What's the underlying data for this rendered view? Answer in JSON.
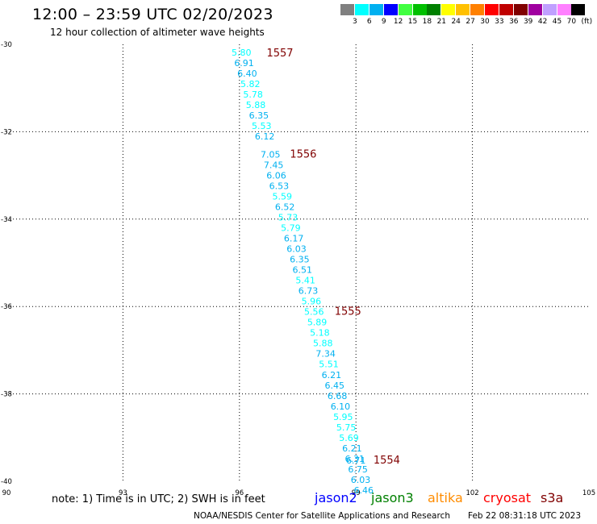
{
  "title": "12:00 – 23:59 UTC 02/20/2023",
  "subtitle": "12 hour collection of altimeter wave heights",
  "legend": {
    "colors": [
      "#808080",
      "#00ffff",
      "#00b0f0",
      "#0000ff",
      "#40ff40",
      "#00c000",
      "#008000",
      "#ffff00",
      "#ffc000",
      "#ff8000",
      "#ff0000",
      "#c00000",
      "#800000",
      "#a000a0",
      "#c0a0ff",
      "#ff80ff",
      "#000000"
    ],
    "labels": [
      "3",
      "6",
      "9",
      "12",
      "15",
      "18",
      "21",
      "24",
      "27",
      "30",
      "33",
      "36",
      "39",
      "42",
      "45",
      "70"
    ],
    "unit": "(ft)"
  },
  "chart_data": {
    "type": "scatter",
    "title": "12:00 – 23:59 UTC 02/20/2023",
    "subtitle": "12 hour collection of altimeter wave heights",
    "xlim": [
      90,
      105
    ],
    "ylim": [
      -40,
      -30
    ],
    "x_ticks": [
      "90",
      "93",
      "96",
      "99",
      "102",
      "105"
    ],
    "y_ticks": [
      "-30",
      "-32",
      "-34",
      "-36",
      "-38",
      "-40"
    ],
    "grid": true,
    "points": [
      {
        "x": 96.05,
        "y": -30.18,
        "v": "5.80",
        "c": "#00ffff"
      },
      {
        "x": 96.12,
        "y": -30.42,
        "v": "6.91",
        "c": "#00b0f0"
      },
      {
        "x": 96.2,
        "y": -30.66,
        "v": "6.40",
        "c": "#00b0f0"
      },
      {
        "x": 96.28,
        "y": -30.9,
        "v": "5.82",
        "c": "#00ffff"
      },
      {
        "x": 96.35,
        "y": -31.14,
        "v": "5.78",
        "c": "#00ffff"
      },
      {
        "x": 96.42,
        "y": -31.38,
        "v": "5.88",
        "c": "#00ffff"
      },
      {
        "x": 96.5,
        "y": -31.62,
        "v": "6.35",
        "c": "#00b0f0"
      },
      {
        "x": 96.57,
        "y": -31.86,
        "v": "5.53",
        "c": "#00ffff"
      },
      {
        "x": 96.65,
        "y": -32.1,
        "v": "6.12",
        "c": "#00b0f0"
      },
      {
        "x": 96.8,
        "y": -32.52,
        "v": "7.05",
        "c": "#00b0f0"
      },
      {
        "x": 96.88,
        "y": -32.76,
        "v": "7.45",
        "c": "#00b0f0"
      },
      {
        "x": 96.95,
        "y": -33.0,
        "v": "6.06",
        "c": "#00b0f0"
      },
      {
        "x": 97.02,
        "y": -33.24,
        "v": "6.53",
        "c": "#00b0f0"
      },
      {
        "x": 97.1,
        "y": -33.48,
        "v": "5.59",
        "c": "#00ffff"
      },
      {
        "x": 97.17,
        "y": -33.72,
        "v": "6.52",
        "c": "#00b0f0"
      },
      {
        "x": 97.25,
        "y": -33.96,
        "v": "5.73",
        "c": "#00ffff"
      },
      {
        "x": 97.32,
        "y": -34.2,
        "v": "5.79",
        "c": "#00ffff"
      },
      {
        "x": 97.4,
        "y": -34.44,
        "v": "6.17",
        "c": "#00b0f0"
      },
      {
        "x": 97.47,
        "y": -34.68,
        "v": "6.03",
        "c": "#00b0f0"
      },
      {
        "x": 97.55,
        "y": -34.92,
        "v": "6.35",
        "c": "#00b0f0"
      },
      {
        "x": 97.62,
        "y": -35.16,
        "v": "6.51",
        "c": "#00b0f0"
      },
      {
        "x": 97.7,
        "y": -35.4,
        "v": "5.41",
        "c": "#00ffff"
      },
      {
        "x": 97.77,
        "y": -35.64,
        "v": "6.73",
        "c": "#00b0f0"
      },
      {
        "x": 97.85,
        "y": -35.88,
        "v": "5.96",
        "c": "#00ffff"
      },
      {
        "x": 97.92,
        "y": -36.12,
        "v": "5.56",
        "c": "#00ffff"
      },
      {
        "x": 98.0,
        "y": -36.36,
        "v": "5.89",
        "c": "#00ffff"
      },
      {
        "x": 98.07,
        "y": -36.6,
        "v": "5.18",
        "c": "#00ffff"
      },
      {
        "x": 98.15,
        "y": -36.84,
        "v": "5.88",
        "c": "#00ffff"
      },
      {
        "x": 98.22,
        "y": -37.08,
        "v": "7.34",
        "c": "#00b0f0"
      },
      {
        "x": 98.3,
        "y": -37.32,
        "v": "5.51",
        "c": "#00ffff"
      },
      {
        "x": 98.37,
        "y": -37.56,
        "v": "6.21",
        "c": "#00b0f0"
      },
      {
        "x": 98.45,
        "y": -37.8,
        "v": "6.45",
        "c": "#00b0f0"
      },
      {
        "x": 98.52,
        "y": -38.04,
        "v": "6.68",
        "c": "#00b0f0"
      },
      {
        "x": 98.6,
        "y": -38.28,
        "v": "6.10",
        "c": "#00b0f0"
      },
      {
        "x": 98.67,
        "y": -38.52,
        "v": "5.95",
        "c": "#00ffff"
      },
      {
        "x": 98.75,
        "y": -38.76,
        "v": "5.75",
        "c": "#00ffff"
      },
      {
        "x": 98.82,
        "y": -39.0,
        "v": "5.69",
        "c": "#00ffff"
      },
      {
        "x": 98.9,
        "y": -39.24,
        "v": "6.21",
        "c": "#00b0f0"
      },
      {
        "x": 98.97,
        "y": -39.48,
        "v": "6.31",
        "c": "#00b0f0"
      },
      {
        "x": 99.0,
        "y": -39.52,
        "v": "6.71",
        "c": "#00b0f0"
      },
      {
        "x": 99.05,
        "y": -39.72,
        "v": "6.75",
        "c": "#00b0f0"
      },
      {
        "x": 99.12,
        "y": -39.96,
        "v": "6.03",
        "c": "#00b0f0"
      },
      {
        "x": 99.2,
        "y": -40.2,
        "v": "6.46",
        "c": "#00b0f0"
      }
    ],
    "annotations": [
      {
        "x": 96.7,
        "y": -30.2,
        "text": "1557"
      },
      {
        "x": 97.3,
        "y": -32.52,
        "text": "1556"
      },
      {
        "x": 98.45,
        "y": -36.12,
        "text": "1555"
      },
      {
        "x": 99.45,
        "y": -39.52,
        "text": "1554"
      }
    ]
  },
  "note": "note: 1) Time is in UTC; 2) SWH is in feet",
  "satellites": [
    {
      "name": "jason2",
      "color": "#0000ff"
    },
    {
      "name": "jason3",
      "color": "#008000"
    },
    {
      "name": "altika",
      "color": "#ff8c00"
    },
    {
      "name": "cryosat",
      "color": "#ff0000"
    },
    {
      "name": "s3a",
      "color": "#800000"
    }
  ],
  "footer": {
    "credit": "NOAA/NESDIS Center for Satellite Applications and Research",
    "timestamp": "Feb 22 08:31:18 UTC 2023"
  }
}
